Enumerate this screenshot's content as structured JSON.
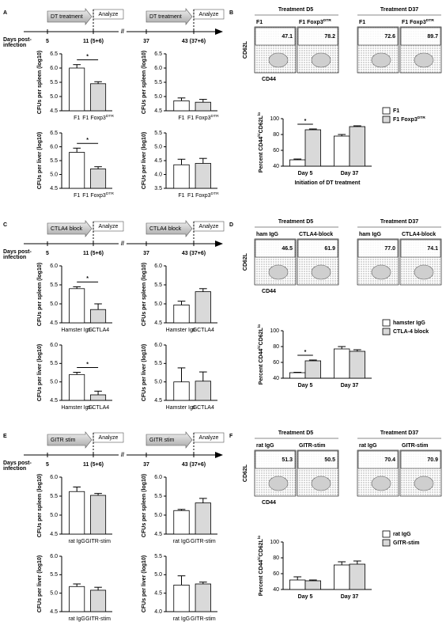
{
  "panels": [
    {
      "letter": "A",
      "timeline": {
        "treatment": "DT treatment",
        "analyze": "Analyze",
        "days_label": [
          "Days post-",
          "infection"
        ],
        "days": [
          "5",
          "11 (5+6)",
          "37",
          "43 (37+6)"
        ]
      },
      "flow": {
        "headers": [
          "Treatment D5",
          "Treatment D37"
        ],
        "samples": [
          "F1",
          "F1 Foxp3",
          "F1",
          "F1 Foxp3"
        ],
        "sample_superscripts": [
          null,
          "DTR",
          null,
          "DTR"
        ],
        "values": [
          47.1,
          78.2,
          72.6,
          89.7
        ],
        "y_axis": "CD62L",
        "x_axis": "CD44"
      }
    },
    {
      "letter": "B"
    },
    {
      "letter": "C",
      "timeline": {
        "treatment": "CTLA4 block",
        "analyze": "Analyze",
        "days_label": [
          "Days post-",
          "infection"
        ],
        "days": [
          "5",
          "11 (5+6)",
          "37",
          "43 (37+6)"
        ]
      },
      "flow": {
        "headers": [
          "Treatment D5",
          "Treatment D37"
        ],
        "samples": [
          "ham IgG",
          "CTLA4-block",
          "ham IgG",
          "CTLA4-block"
        ],
        "sample_superscripts": [
          null,
          null,
          null,
          null
        ],
        "values": [
          46.5,
          61.9,
          77,
          74.1
        ],
        "value_labels": [
          "46.5",
          "61.9",
          "77.0",
          "74.1"
        ],
        "y_axis": "CD62L",
        "x_axis": "CD44"
      }
    },
    {
      "letter": "D"
    },
    {
      "letter": "E",
      "timeline": {
        "treatment": "GITR stim",
        "analyze": "Analyze",
        "days_label": [
          "Days post-",
          "infection"
        ],
        "days": [
          "5",
          "11 (5+6)",
          "37",
          "43 (37+6)"
        ]
      },
      "flow": {
        "headers": [
          "Treatment D5",
          "Treatment D37"
        ],
        "samples": [
          "rat IgG",
          "GITR-stim",
          "rat IgG",
          "GITR-stim"
        ],
        "sample_superscripts": [
          null,
          null,
          null,
          null
        ],
        "values": [
          51.3,
          50.5,
          70.4,
          70.9
        ],
        "y_axis": "CD62L",
        "x_axis": "CD44"
      }
    },
    {
      "letter": "F"
    }
  ],
  "chart_data": [
    {
      "type": "bar",
      "ylabel": "CFUs per spleen (log10)",
      "categories": [
        "F1",
        "F1 Foxp3"
      ],
      "category_superscripts": [
        null,
        "DTR"
      ],
      "values": [
        6.0,
        5.45
      ],
      "errors": [
        0.12,
        0.07
      ],
      "colors": [
        "#ffffff",
        "#d9d9d9"
      ],
      "ylim": [
        4.5,
        6.5
      ],
      "yticks": [
        4.5,
        {
          "value": 5,
          "label": "5.0"
        },
        5.5,
        {
          "value": 6,
          "label": "6.0"
        },
        6.5
      ],
      "significance": "*"
    },
    {
      "type": "bar",
      "ylabel": "CFUs per spleen (log10)",
      "categories": [
        "F1",
        "F1 Foxp3"
      ],
      "category_superscripts": [
        null,
        "DTR"
      ],
      "values": [
        4.85,
        4.8
      ],
      "errors": [
        0.1,
        0.1
      ],
      "colors": [
        "#ffffff",
        "#d9d9d9"
      ],
      "ylim": [
        4.5,
        6.5
      ],
      "yticks": [
        4.5,
        {
          "value": 5,
          "label": "5.0"
        },
        5.5,
        {
          "value": 6,
          "label": "6.0"
        },
        6.5
      ]
    },
    {
      "type": "bar",
      "ylabel": "CFUs per liver (log10)",
      "categories": [
        "F1",
        "F1 Foxp3"
      ],
      "category_superscripts": [
        null,
        "DTR"
      ],
      "values": [
        5.8,
        5.2
      ],
      "errors": [
        0.15,
        0.08
      ],
      "colors": [
        "#ffffff",
        "#d9d9d9"
      ],
      "ylim": [
        4.5,
        6.5
      ],
      "yticks": [
        4.5,
        {
          "value": 5,
          "label": "5.0"
        },
        5.5,
        {
          "value": 6,
          "label": "6.0"
        },
        6.5
      ],
      "significance": "*"
    },
    {
      "type": "bar",
      "ylabel": "CFUs per liver (log10)",
      "categories": [
        "F1",
        "F1 Foxp3"
      ],
      "category_superscripts": [
        null,
        "DTR"
      ],
      "values": [
        4.35,
        4.4
      ],
      "errors": [
        0.2,
        0.18
      ],
      "colors": [
        "#ffffff",
        "#d9d9d9"
      ],
      "ylim": [
        3.5,
        5.5
      ],
      "yticks": [
        3.5,
        {
          "value": 4,
          "label": "4.0"
        },
        4.5,
        {
          "value": 5,
          "label": "5.0"
        },
        5.5
      ]
    },
    {
      "type": "grouped-bar",
      "ylabel": [
        "Percent CD44",
        "hi",
        "CD62L",
        "lo"
      ],
      "xlabel": "Initiation of DT treatment",
      "categories": [
        "Day 5",
        "Day 37"
      ],
      "series": [
        {
          "name": "F1",
          "color": "#ffffff",
          "values": [
            48,
            78
          ],
          "errors": [
            1,
            2
          ]
        },
        {
          "name": "F1 Foxp3",
          "superscript": "DTR",
          "color": "#d9d9d9",
          "values": [
            86,
            90
          ],
          "errors": [
            1,
            1
          ]
        }
      ],
      "ylim": [
        40,
        100
      ],
      "yticks": [
        40,
        60,
        80,
        100
      ],
      "significance": "*"
    },
    {
      "type": "bar",
      "ylabel": "CFUs per spleen (log10)",
      "categories": [
        "Hamster IgG",
        "α-CTLA4"
      ],
      "values": [
        5.4,
        4.85
      ],
      "errors": [
        0.05,
        0.15
      ],
      "colors": [
        "#ffffff",
        "#d9d9d9"
      ],
      "ylim": [
        4.5,
        6.0
      ],
      "yticks": [
        4.5,
        {
          "value": 5,
          "label": "5.0"
        },
        5.5,
        {
          "value": 6,
          "label": "6.0"
        }
      ],
      "significance": "*"
    },
    {
      "type": "bar",
      "ylabel": "CFUs per spleen (log10)",
      "categories": [
        "Hamster IgG",
        "α-CTLA4"
      ],
      "values": [
        4.97,
        5.32
      ],
      "errors": [
        0.1,
        0.08
      ],
      "colors": [
        "#ffffff",
        "#d9d9d9"
      ],
      "ylim": [
        4.5,
        6.0
      ],
      "yticks": [
        4.5,
        {
          "value": 5,
          "label": "5.0"
        },
        5.5,
        {
          "value": 6,
          "label": "6.0"
        }
      ]
    },
    {
      "type": "bar",
      "ylabel": "CFUs per liver (log10)",
      "categories": [
        "Hamster IgG",
        "α-CTLA4"
      ],
      "values": [
        5.2,
        4.65
      ],
      "errors": [
        0.06,
        0.1
      ],
      "colors": [
        "#ffffff",
        "#d9d9d9"
      ],
      "ylim": [
        4.5,
        6.0
      ],
      "yticks": [
        4.5,
        {
          "value": 5,
          "label": "5.0"
        },
        5.5,
        {
          "value": 6,
          "label": "6.0"
        }
      ],
      "significance": "*"
    },
    {
      "type": "bar",
      "ylabel": "CFUs per liver (log10)",
      "categories": [
        "Hamster IgG",
        "α-CTLA4"
      ],
      "values": [
        5.0,
        5.02
      ],
      "errors": [
        0.38,
        0.25
      ],
      "colors": [
        "#ffffff",
        "#d9d9d9"
      ],
      "ylim": [
        4.5,
        6.0
      ],
      "yticks": [
        4.5,
        {
          "value": 5,
          "label": "5.0"
        },
        5.5,
        {
          "value": 6,
          "label": "6.0"
        }
      ]
    },
    {
      "type": "grouped-bar",
      "ylabel": [
        "Percent CD44",
        "hi",
        "CD62L",
        "lo"
      ],
      "categories": [
        "Day 5",
        "Day 37"
      ],
      "series": [
        {
          "name": "hamster IgG",
          "color": "#ffffff",
          "values": [
            47,
            77
          ],
          "errors": [
            0.5,
            3
          ]
        },
        {
          "name": "CTLA-4 block",
          "color": "#d9d9d9",
          "values": [
            62,
            74
          ],
          "errors": [
            1,
            2
          ]
        }
      ],
      "ylim": [
        40,
        100
      ],
      "yticks": [
        40,
        60,
        80,
        100
      ],
      "significance": "*"
    },
    {
      "type": "bar",
      "ylabel": "CFUs per spleen (log10)",
      "categories": [
        "rat IgG",
        "GITR-stim"
      ],
      "values": [
        5.62,
        5.52
      ],
      "errors": [
        0.12,
        0.05
      ],
      "colors": [
        "#ffffff",
        "#d9d9d9"
      ],
      "ylim": [
        4.5,
        6.0
      ],
      "yticks": [
        4.5,
        {
          "value": 5,
          "label": "5.0"
        },
        5.5,
        {
          "value": 6,
          "label": "6.0"
        }
      ]
    },
    {
      "type": "bar",
      "ylabel": "CFUs per spleen (log10)",
      "categories": [
        "rat IgG",
        "GITR-stim"
      ],
      "values": [
        5.12,
        5.32
      ],
      "errors": [
        0.03,
        0.12
      ],
      "colors": [
        "#ffffff",
        "#d9d9d9"
      ],
      "ylim": [
        4.5,
        6.0
      ],
      "yticks": [
        4.5,
        {
          "value": 5,
          "label": "5.0"
        },
        5.5,
        {
          "value": 6,
          "label": "6.0"
        }
      ]
    },
    {
      "type": "bar",
      "ylabel": "CFUs per liver (log10)",
      "categories": [
        "rat IgG",
        "GITR-stim"
      ],
      "values": [
        5.18,
        5.08
      ],
      "errors": [
        0.07,
        0.08
      ],
      "colors": [
        "#ffffff",
        "#d9d9d9"
      ],
      "ylim": [
        4.5,
        6.0
      ],
      "yticks": [
        4.5,
        {
          "value": 5,
          "label": "5.0"
        },
        5.5,
        {
          "value": 6,
          "label": "6.0"
        }
      ]
    },
    {
      "type": "bar",
      "ylabel": "CFUs per liver (log10)",
      "categories": [
        "rat IgG",
        "GITR-stim"
      ],
      "values": [
        4.72,
        4.75
      ],
      "errors": [
        0.25,
        0.05
      ],
      "colors": [
        "#ffffff",
        "#d9d9d9"
      ],
      "ylim": [
        4.0,
        5.5
      ],
      "yticks": [
        {
          "value": 4,
          "label": "4.0"
        },
        4.5,
        {
          "value": 5,
          "label": "5.0"
        },
        5.5
      ]
    },
    {
      "type": "grouped-bar",
      "ylabel": [
        "Percent CD44",
        "hi",
        "CD62L",
        "lo"
      ],
      "categories": [
        "Day 5",
        "Day 37"
      ],
      "series": [
        {
          "name": "rat IgG",
          "color": "#ffffff",
          "values": [
            52,
            71
          ],
          "errors": [
            4,
            4
          ]
        },
        {
          "name": "GITR-stim",
          "color": "#d9d9d9",
          "values": [
            51,
            72
          ],
          "errors": [
            1,
            4
          ]
        }
      ],
      "ylim": [
        40,
        100
      ],
      "yticks": [
        40,
        60,
        80,
        100
      ]
    }
  ]
}
